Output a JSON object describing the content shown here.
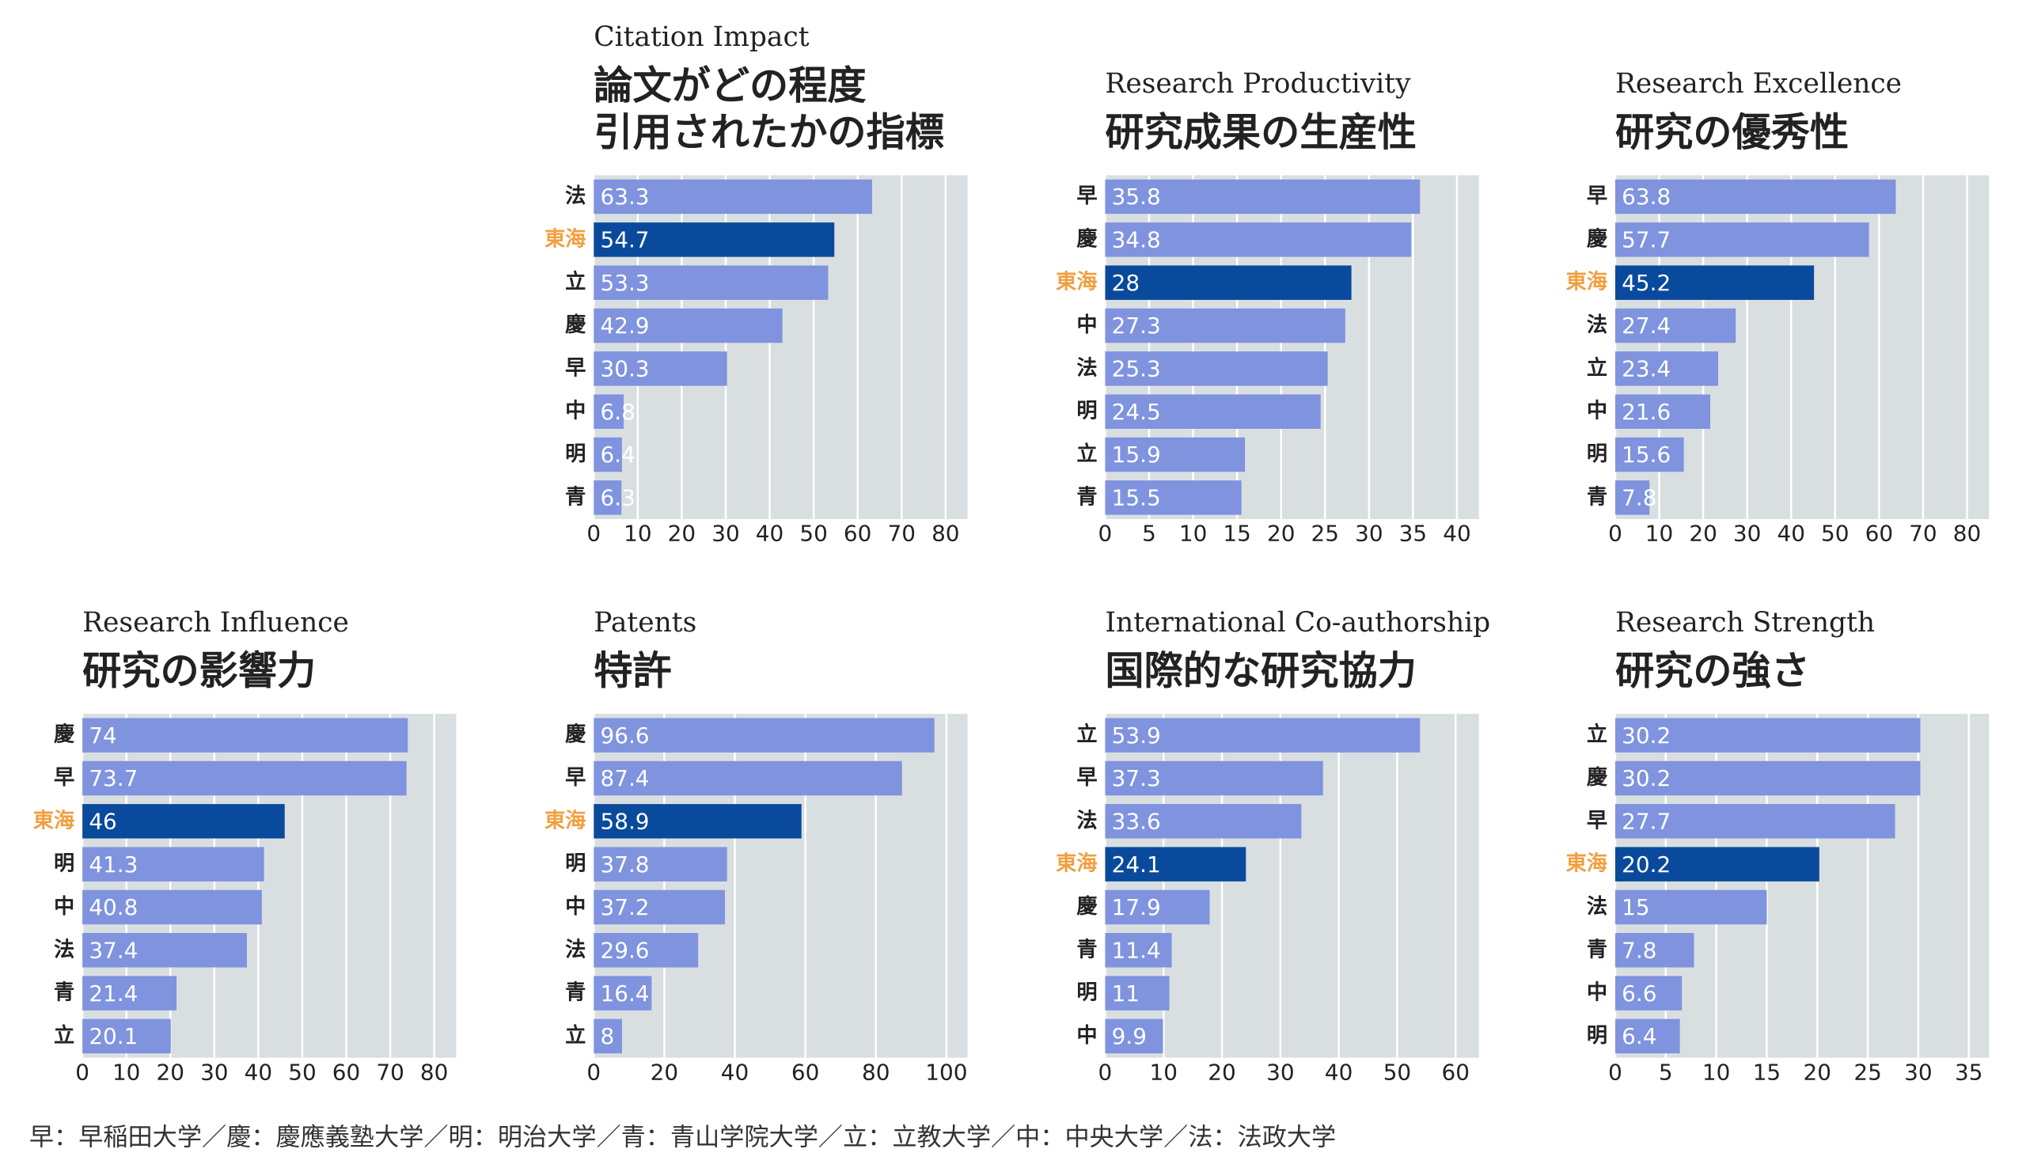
{
  "chart_data": [
    {
      "type": "bar",
      "subtitle": "Citation Impact",
      "title": [
        "論文がどの程度",
        "引用されたかの指標"
      ],
      "categories": [
        "法",
        "東海",
        "立",
        "慶",
        "早",
        "中",
        "明",
        "青"
      ],
      "values": [
        63.3,
        54.7,
        53.3,
        42.9,
        30.3,
        6.8,
        6.4,
        6.3
      ],
      "colors": [
        "#7f93de",
        "#0a4a9c",
        "#7f93de",
        "#7f93de",
        "#7f93de",
        "#7f93de",
        "#7f93de",
        "#7f93de"
      ],
      "label_colors": [
        "#222222",
        "#f0a040",
        "#222222",
        "#222222",
        "#222222",
        "#222222",
        "#222222",
        "#222222"
      ],
      "xlim": [
        0,
        85
      ],
      "xticks": [
        0,
        10,
        20,
        30,
        40,
        50,
        60,
        70,
        80
      ],
      "grid": true
    },
    {
      "type": "bar",
      "subtitle": "Research Productivity",
      "title": [
        "研究成果の生産性"
      ],
      "categories": [
        "早",
        "慶",
        "東海",
        "中",
        "法",
        "明",
        "立",
        "青"
      ],
      "values": [
        35.8,
        34.8,
        28,
        27.3,
        25.3,
        24.5,
        15.9,
        15.5
      ],
      "colors": [
        "#7f93de",
        "#7f93de",
        "#0a4a9c",
        "#7f93de",
        "#7f93de",
        "#7f93de",
        "#7f93de",
        "#7f93de"
      ],
      "label_colors": [
        "#222222",
        "#222222",
        "#f0a040",
        "#222222",
        "#222222",
        "#222222",
        "#222222",
        "#222222"
      ],
      "xlim": [
        0,
        42.5
      ],
      "xticks": [
        0,
        5,
        10,
        15,
        20,
        25,
        30,
        35,
        40
      ],
      "grid": true
    },
    {
      "type": "bar",
      "subtitle": "Research Excellence",
      "title": [
        "研究の優秀性"
      ],
      "categories": [
        "早",
        "慶",
        "東海",
        "法",
        "立",
        "中",
        "明",
        "青"
      ],
      "values": [
        63.8,
        57.7,
        45.2,
        27.4,
        23.4,
        21.6,
        15.6,
        7.8
      ],
      "colors": [
        "#7f93de",
        "#7f93de",
        "#0a4a9c",
        "#7f93de",
        "#7f93de",
        "#7f93de",
        "#7f93de",
        "#7f93de"
      ],
      "label_colors": [
        "#222222",
        "#222222",
        "#f0a040",
        "#222222",
        "#222222",
        "#222222",
        "#222222",
        "#222222"
      ],
      "xlim": [
        0,
        85
      ],
      "xticks": [
        0,
        10,
        20,
        30,
        40,
        50,
        60,
        70,
        80
      ],
      "grid": true
    },
    {
      "type": "bar",
      "subtitle": "Research Influence",
      "title": [
        "研究の影響力"
      ],
      "categories": [
        "慶",
        "早",
        "東海",
        "明",
        "中",
        "法",
        "青",
        "立"
      ],
      "values": [
        74,
        73.7,
        46,
        41.3,
        40.8,
        37.4,
        21.4,
        20.1
      ],
      "colors": [
        "#7f93de",
        "#7f93de",
        "#0a4a9c",
        "#7f93de",
        "#7f93de",
        "#7f93de",
        "#7f93de",
        "#7f93de"
      ],
      "label_colors": [
        "#222222",
        "#222222",
        "#f0a040",
        "#222222",
        "#222222",
        "#222222",
        "#222222",
        "#222222"
      ],
      "xlim": [
        0,
        85
      ],
      "xticks": [
        0,
        10,
        20,
        30,
        40,
        50,
        60,
        70,
        80
      ],
      "grid": true
    },
    {
      "type": "bar",
      "subtitle": "Patents",
      "title": [
        "特許"
      ],
      "categories": [
        "慶",
        "早",
        "東海",
        "明",
        "中",
        "法",
        "青",
        "立"
      ],
      "values": [
        96.6,
        87.4,
        58.9,
        37.8,
        37.2,
        29.6,
        16.4,
        8
      ],
      "colors": [
        "#7f93de",
        "#7f93de",
        "#0a4a9c",
        "#7f93de",
        "#7f93de",
        "#7f93de",
        "#7f93de",
        "#7f93de"
      ],
      "label_colors": [
        "#222222",
        "#222222",
        "#f0a040",
        "#222222",
        "#222222",
        "#222222",
        "#222222",
        "#222222"
      ],
      "xlim": [
        0,
        106
      ],
      "xticks": [
        0,
        20,
        40,
        60,
        80,
        100
      ],
      "grid": true
    },
    {
      "type": "bar",
      "subtitle": "International Co-authorship",
      "title": [
        "国際的な研究協力"
      ],
      "categories": [
        "立",
        "早",
        "法",
        "東海",
        "慶",
        "青",
        "明",
        "中"
      ],
      "values": [
        53.9,
        37.3,
        33.6,
        24.1,
        17.9,
        11.4,
        11,
        9.9
      ],
      "colors": [
        "#7f93de",
        "#7f93de",
        "#7f93de",
        "#0a4a9c",
        "#7f93de",
        "#7f93de",
        "#7f93de",
        "#7f93de"
      ],
      "label_colors": [
        "#222222",
        "#222222",
        "#222222",
        "#f0a040",
        "#222222",
        "#222222",
        "#222222",
        "#222222"
      ],
      "xlim": [
        0,
        64
      ],
      "xticks": [
        0,
        10,
        20,
        30,
        40,
        50,
        60
      ],
      "grid": true
    },
    {
      "type": "bar",
      "subtitle": "Research Strength",
      "title": [
        "研究の強さ"
      ],
      "categories": [
        "立",
        "慶",
        "早",
        "東海",
        "法",
        "青",
        "中",
        "明"
      ],
      "values": [
        30.2,
        30.2,
        27.7,
        20.2,
        15,
        7.8,
        6.6,
        6.4
      ],
      "colors": [
        "#7f93de",
        "#7f93de",
        "#7f93de",
        "#0a4a9c",
        "#7f93de",
        "#7f93de",
        "#7f93de",
        "#7f93de"
      ],
      "label_colors": [
        "#222222",
        "#222222",
        "#222222",
        "#f0a040",
        "#222222",
        "#222222",
        "#222222",
        "#222222"
      ],
      "xlim": [
        0,
        37
      ],
      "xticks": [
        0,
        5,
        10,
        15,
        20,
        25,
        30,
        35
      ],
      "grid": true
    }
  ],
  "footnote": "早：早稲田大学／慶：慶應義塾大学／明：明治大学／青：青山学院大学／立：立教大学／中：中央大学／法：法政大学"
}
